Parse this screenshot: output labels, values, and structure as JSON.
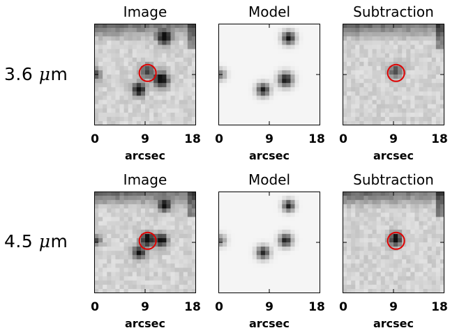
{
  "rows": [
    {
      "label_value": "3.6",
      "label_mu": "μ",
      "label_unit": "m",
      "panels": [
        {
          "title": "Image",
          "x_ticks": [
            "0",
            "9",
            "18"
          ],
          "x_label": "arcsec",
          "circle": true
        },
        {
          "title": "Model",
          "x_ticks": [
            "0",
            "9",
            "18"
          ],
          "x_label": "arcsec",
          "circle": false
        },
        {
          "title": "Subtraction",
          "x_ticks": [
            "0",
            "9",
            "18"
          ],
          "x_label": "arcsec",
          "circle": true
        }
      ]
    },
    {
      "label_value": "4.5",
      "label_mu": "μ",
      "label_unit": "m",
      "panels": [
        {
          "title": "Image",
          "x_ticks": [
            "0",
            "9",
            "18"
          ],
          "x_label": "arcsec",
          "circle": true
        },
        {
          "title": "Model",
          "x_ticks": [
            "0",
            "9",
            "18"
          ],
          "x_label": "arcsec",
          "circle": false
        },
        {
          "title": "Subtraction",
          "x_ticks": [
            "0",
            "9",
            "18"
          ],
          "x_label": "arcsec",
          "circle": true
        }
      ]
    }
  ],
  "colors": {
    "circle": "#e00000",
    "background_light": "#f2f2f2",
    "source": "#101010"
  }
}
